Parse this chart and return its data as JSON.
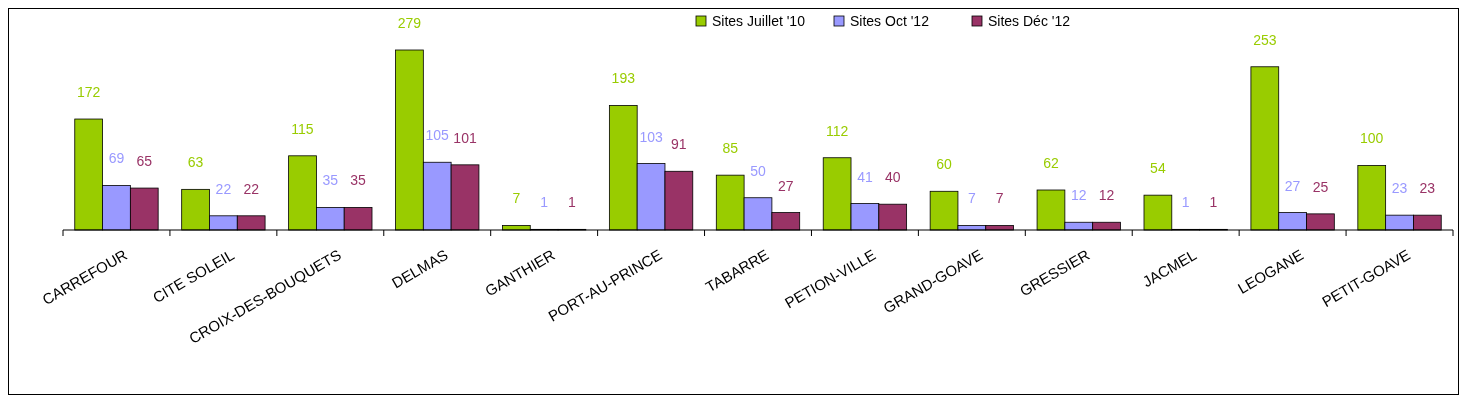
{
  "chart_data": {
    "type": "bar",
    "categories": [
      "CARREFOUR",
      "CITE SOLEIL",
      "CROIX-DES-BOUQUETS",
      "DELMAS",
      "GANTHIER",
      "PORT-AU-PRINCE",
      "TABARRE",
      "PETION-VILLE",
      "GRAND-GOAVE",
      "GRESSIER",
      "JACMEL",
      "LEOGANE",
      "PETIT-GOAVE"
    ],
    "series": [
      {
        "name": "Sites Juillet '10",
        "color": "#99cc00",
        "values": [
          172,
          63,
          115,
          279,
          7,
          193,
          85,
          112,
          60,
          62,
          54,
          253,
          100
        ]
      },
      {
        "name": "Sites Oct '12",
        "color": "#9999ff",
        "values": [
          69,
          22,
          35,
          105,
          1,
          103,
          50,
          41,
          7,
          12,
          1,
          27,
          23
        ]
      },
      {
        "name": "Sites Déc '12",
        "color": "#993366",
        "values": [
          65,
          22,
          35,
          101,
          1,
          91,
          27,
          40,
          7,
          12,
          1,
          25,
          23
        ]
      }
    ],
    "data_labels": true,
    "legend": "top right"
  }
}
